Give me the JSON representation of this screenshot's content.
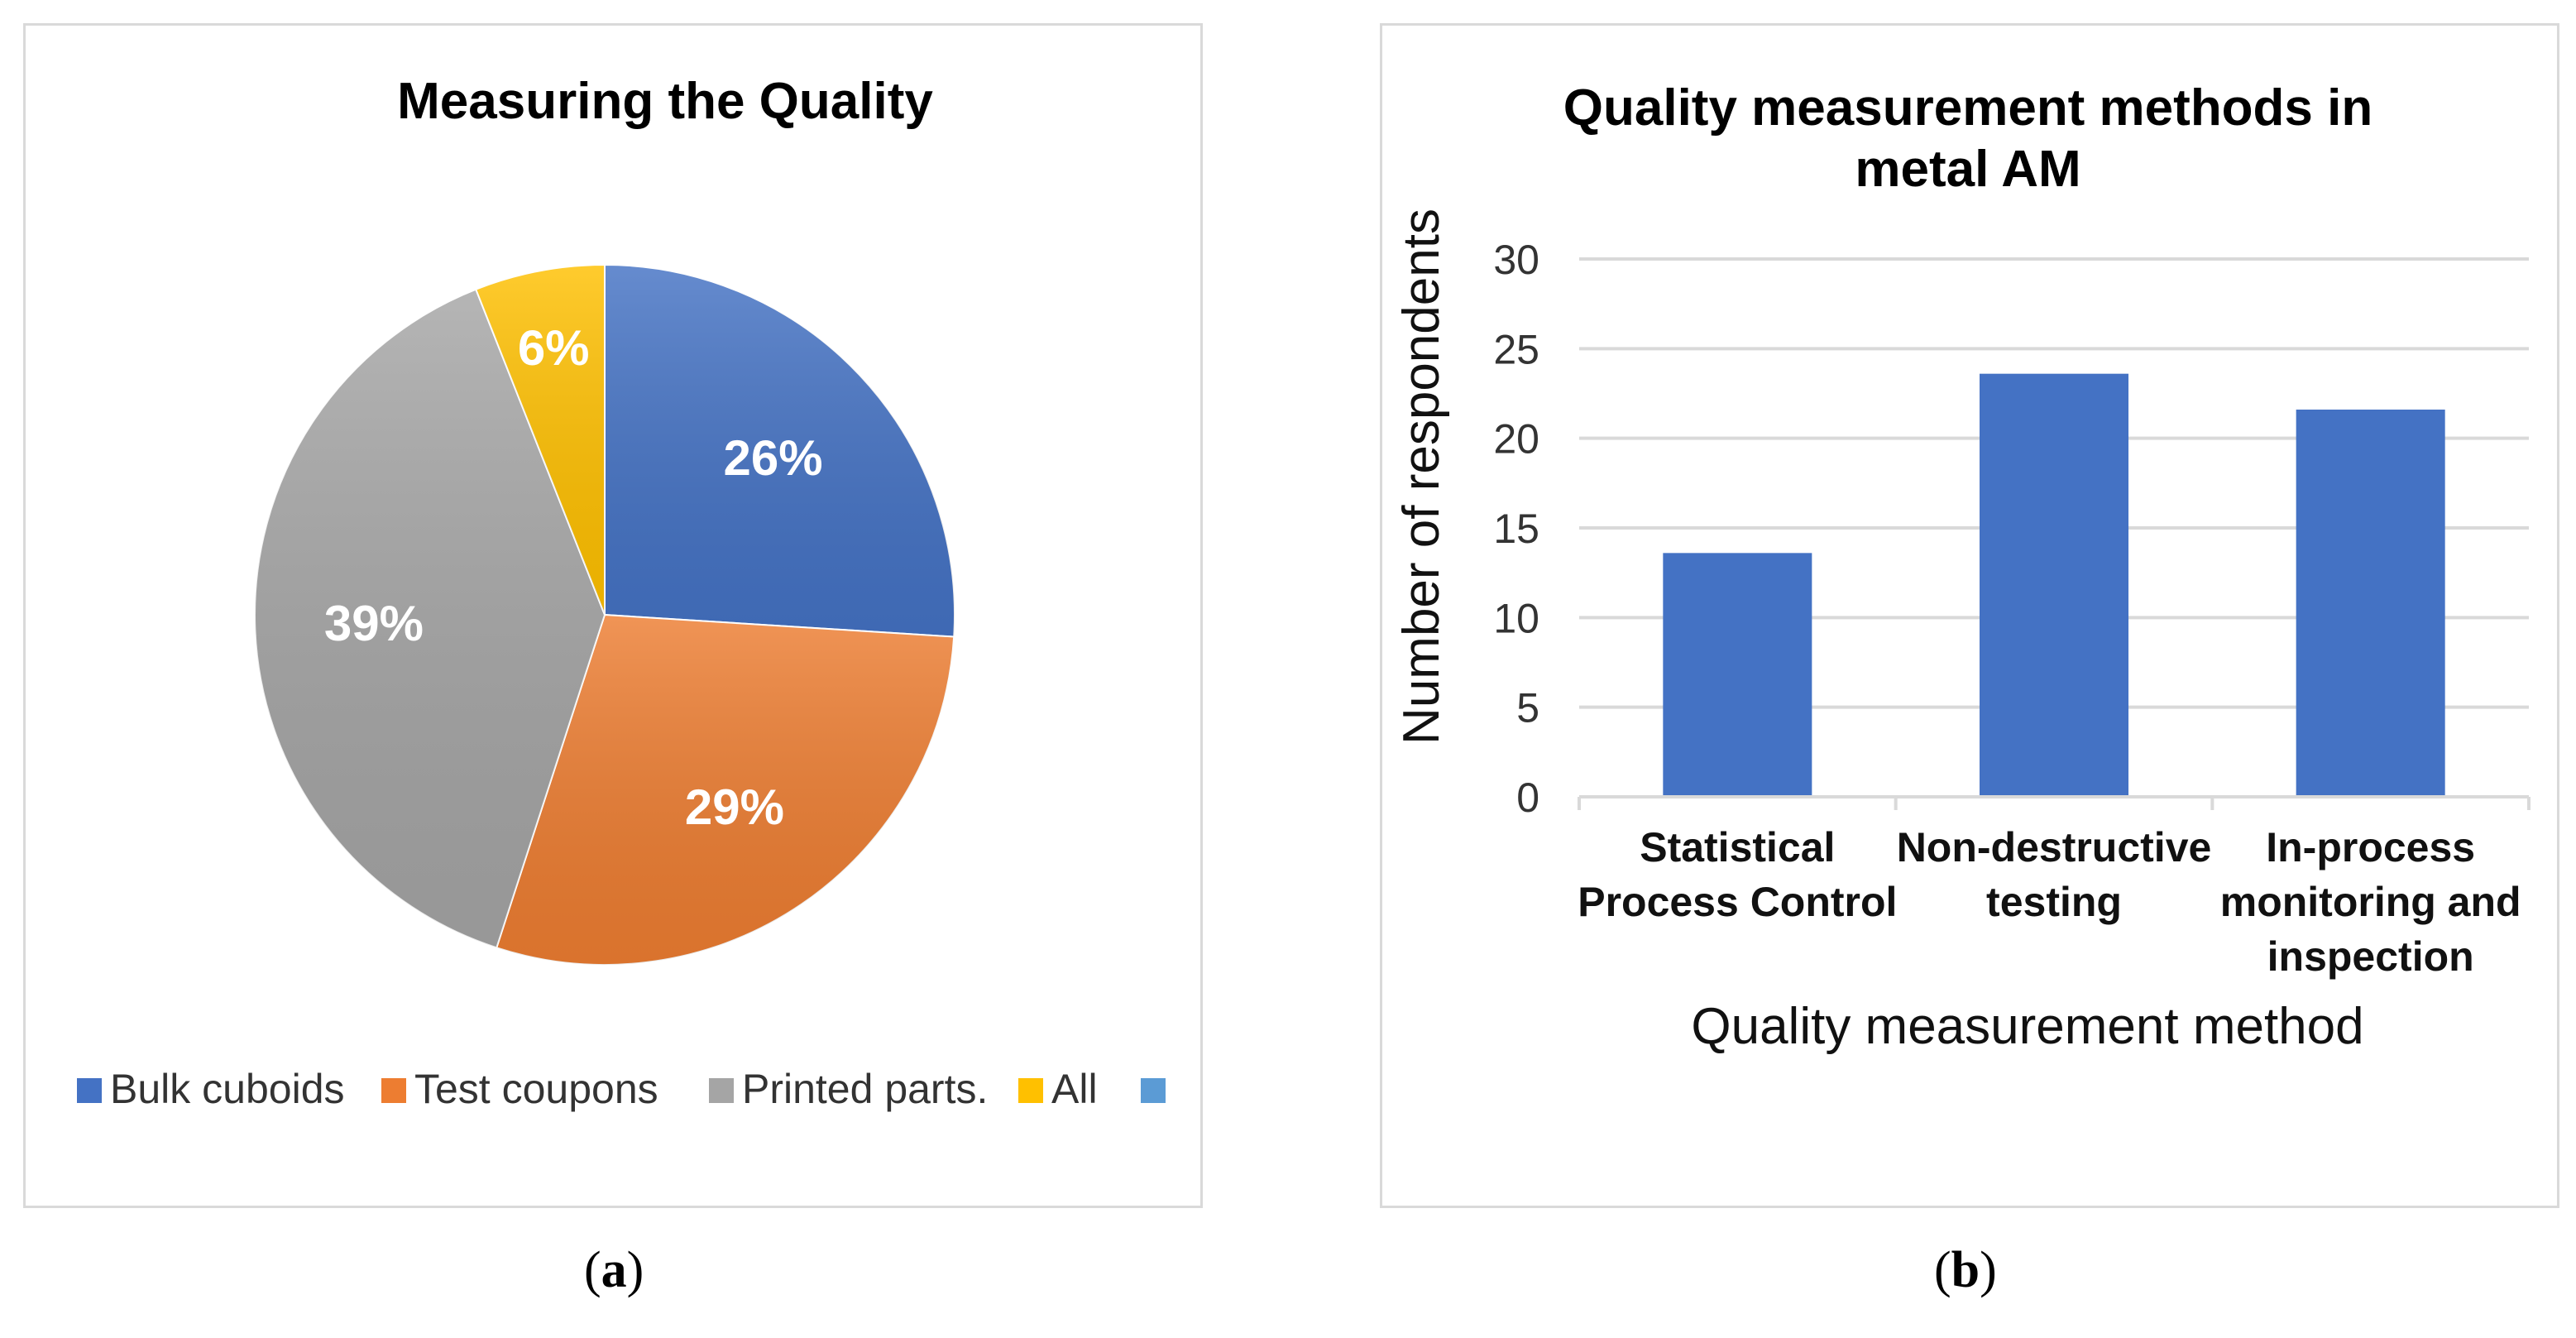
{
  "chart_data": [
    {
      "type": "pie",
      "title": "Measuring the Quality",
      "caption": "a",
      "slices": [
        {
          "label": "Bulk cuboids",
          "value": 26,
          "display": "26%",
          "color": "#4472c4"
        },
        {
          "label": "Test coupons",
          "value": 29,
          "display": "29%",
          "color": "#ed7d31"
        },
        {
          "label": "Printed parts.",
          "value": 39,
          "display": "39%",
          "color": "#a5a5a5"
        },
        {
          "label": "All",
          "value": 6,
          "display": "6%",
          "color": "#ffc000"
        }
      ],
      "legend": [
        {
          "label": "Bulk cuboids",
          "color": "#4472c4"
        },
        {
          "label": "Test coupons",
          "color": "#ed7d31"
        },
        {
          "label": "Printed parts.",
          "color": "#a5a5a5"
        },
        {
          "label": "All",
          "color": "#ffc000"
        },
        {
          "label": "",
          "color": "#5b9bd5"
        }
      ],
      "legend_position": "bottom"
    },
    {
      "type": "bar",
      "title_lines": [
        "Quality measurement methods in",
        "metal AM"
      ],
      "caption": "b",
      "categories": [
        [
          "Statistical",
          "Process Control"
        ],
        [
          "Non-destructive",
          "testing"
        ],
        [
          "In-process",
          "monitoring and",
          "inspection"
        ]
      ],
      "values": [
        13.6,
        23.6,
        21.6
      ],
      "ylim": [
        0,
        30
      ],
      "yticks": [
        "0",
        "5",
        "10",
        "15",
        "20",
        "25",
        "30"
      ],
      "xlabel": "Quality measurement method",
      "ylabel": "Number of respondents",
      "bar_color": "#4472c4",
      "grid": true
    }
  ]
}
